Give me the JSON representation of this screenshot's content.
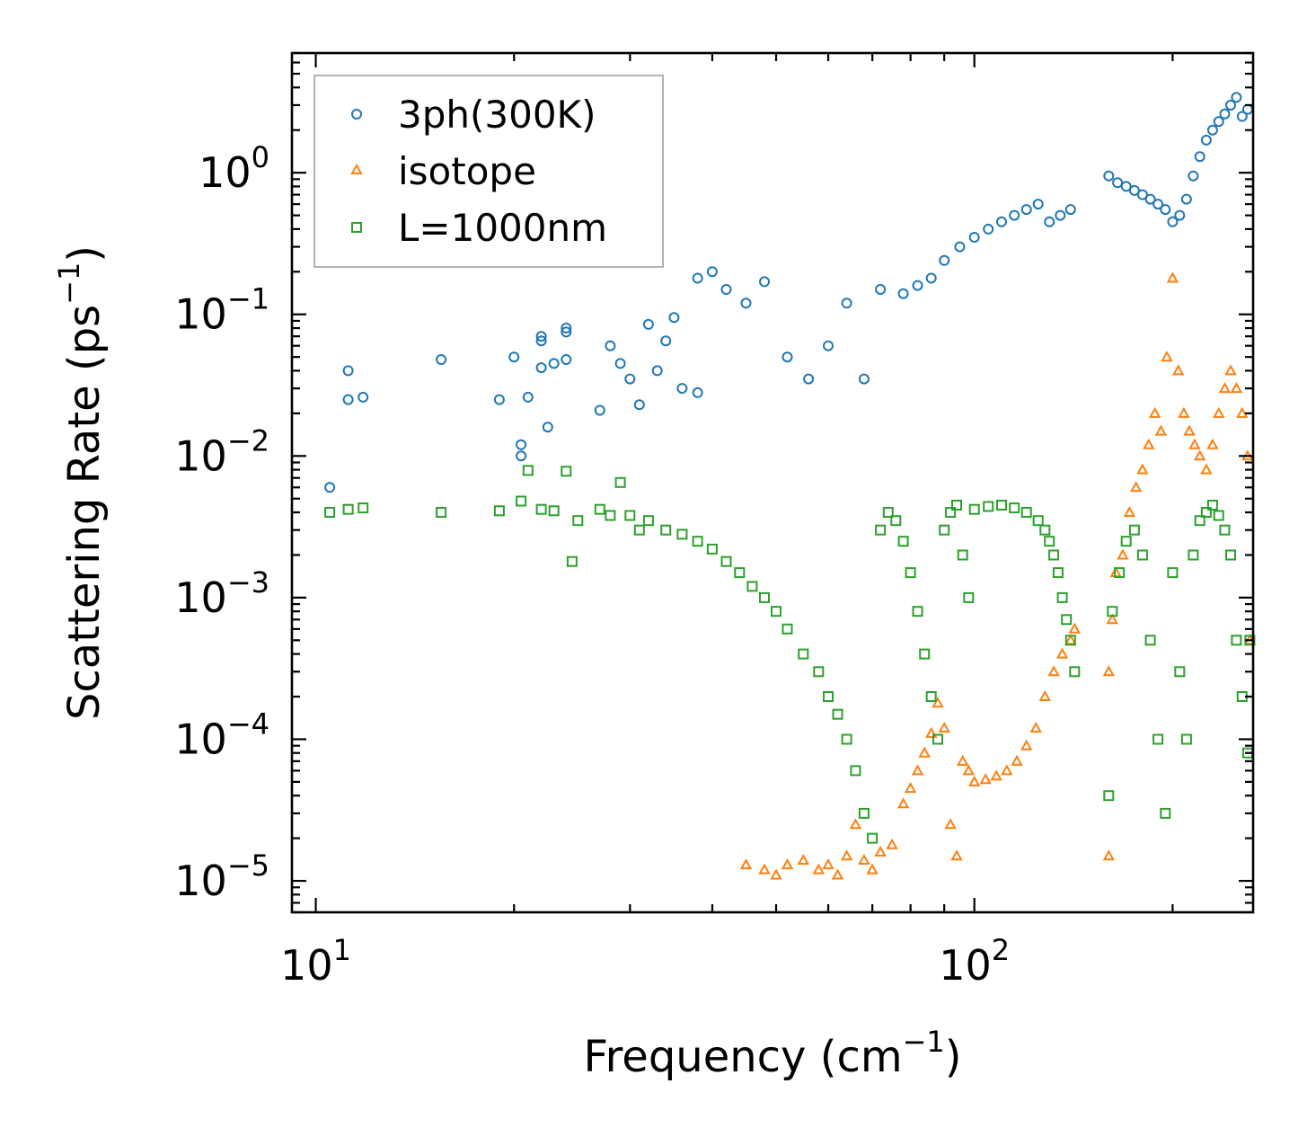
{
  "chart_data": {
    "type": "scatter",
    "title": "",
    "xlabel": "Frequency (cm",
    "xlabel_sup": "−1",
    "xlabel_end": ")",
    "ylabel": "Scattering Rate (ps",
    "ylabel_sup": "−1",
    "ylabel_end": ")",
    "xscale": "log",
    "yscale": "log",
    "xlim": [
      9.2,
      265
    ],
    "ylim": [
      6e-06,
      7.0
    ],
    "grid": false,
    "legend_position": "top-left",
    "x_ticks": [
      {
        "value": 10,
        "base": "10",
        "exp": "1"
      },
      {
        "value": 100,
        "base": "10",
        "exp": "2"
      }
    ],
    "y_ticks": [
      {
        "value": 1,
        "base": "10",
        "exp": "0"
      },
      {
        "value": 0.1,
        "base": "10",
        "exp": "−1"
      },
      {
        "value": 0.01,
        "base": "10",
        "exp": "−2"
      },
      {
        "value": 0.001,
        "base": "10",
        "exp": "−3"
      },
      {
        "value": 0.0001,
        "base": "10",
        "exp": "−4"
      },
      {
        "value": 1e-05,
        "base": "10",
        "exp": "−5"
      }
    ],
    "series": [
      {
        "name": "3ph(300K)",
        "marker": "circle",
        "color": "#1f77b4",
        "points": [
          [
            10.5,
            0.006
          ],
          [
            11.2,
            0.04
          ],
          [
            11.2,
            0.025
          ],
          [
            11.8,
            0.026
          ],
          [
            15.5,
            0.048
          ],
          [
            19,
            0.025
          ],
          [
            20,
            0.05
          ],
          [
            20.5,
            0.012
          ],
          [
            20.5,
            0.01
          ],
          [
            21,
            0.026
          ],
          [
            22,
            0.07
          ],
          [
            22,
            0.065
          ],
          [
            22,
            0.042
          ],
          [
            22.5,
            0.016
          ],
          [
            23,
            0.045
          ],
          [
            24,
            0.08
          ],
          [
            24,
            0.075
          ],
          [
            24,
            0.048
          ],
          [
            27,
            0.021
          ],
          [
            28,
            0.06
          ],
          [
            29,
            0.045
          ],
          [
            30,
            0.035
          ],
          [
            31,
            0.023
          ],
          [
            32,
            0.085
          ],
          [
            33,
            0.04
          ],
          [
            34,
            0.065
          ],
          [
            35,
            0.095
          ],
          [
            36,
            0.03
          ],
          [
            38,
            0.028
          ],
          [
            40,
            0.2
          ],
          [
            42,
            0.15
          ],
          [
            38,
            0.18
          ],
          [
            45,
            0.12
          ],
          [
            48,
            0.17
          ],
          [
            52,
            0.05
          ],
          [
            56,
            0.035
          ],
          [
            60,
            0.06
          ],
          [
            64,
            0.12
          ],
          [
            68,
            0.035
          ],
          [
            72,
            0.15
          ],
          [
            78,
            0.14
          ],
          [
            82,
            0.16
          ],
          [
            86,
            0.18
          ],
          [
            90,
            0.24
          ],
          [
            95,
            0.3
          ],
          [
            100,
            0.35
          ],
          [
            105,
            0.4
          ],
          [
            110,
            0.45
          ],
          [
            115,
            0.5
          ],
          [
            120,
            0.55
          ],
          [
            125,
            0.6
          ],
          [
            130,
            0.45
          ],
          [
            135,
            0.5
          ],
          [
            140,
            0.55
          ],
          [
            160,
            0.95
          ],
          [
            165,
            0.85
          ],
          [
            170,
            0.8
          ],
          [
            175,
            0.75
          ],
          [
            180,
            0.7
          ],
          [
            185,
            0.65
          ],
          [
            190,
            0.6
          ],
          [
            195,
            0.55
          ],
          [
            200,
            0.45
          ],
          [
            205,
            0.5
          ],
          [
            210,
            0.65
          ],
          [
            215,
            0.95
          ],
          [
            220,
            1.3
          ],
          [
            225,
            1.7
          ],
          [
            230,
            2.0
          ],
          [
            235,
            2.3
          ],
          [
            240,
            2.6
          ],
          [
            245,
            3.0
          ],
          [
            250,
            3.4
          ],
          [
            255,
            2.5
          ],
          [
            260,
            2.8
          ]
        ]
      },
      {
        "name": "isotope",
        "marker": "triangle",
        "color": "#ff7f0e",
        "points": [
          [
            45,
            1.3e-05
          ],
          [
            48,
            1.2e-05
          ],
          [
            50,
            1.1e-05
          ],
          [
            52,
            1.3e-05
          ],
          [
            55,
            1.4e-05
          ],
          [
            58,
            1.2e-05
          ],
          [
            60,
            1.3e-05
          ],
          [
            62,
            1.1e-05
          ],
          [
            64,
            1.5e-05
          ],
          [
            66,
            2.5e-05
          ],
          [
            68,
            1.4e-05
          ],
          [
            70,
            1.2e-05
          ],
          [
            72,
            1.6e-05
          ],
          [
            75,
            1.8e-05
          ],
          [
            78,
            3.5e-05
          ],
          [
            80,
            4.5e-05
          ],
          [
            82,
            6e-05
          ],
          [
            84,
            8e-05
          ],
          [
            86,
            0.00011
          ],
          [
            88,
            0.00018
          ],
          [
            90,
            0.00012
          ],
          [
            92,
            2.5e-05
          ],
          [
            94,
            1.5e-05
          ],
          [
            96,
            7e-05
          ],
          [
            98,
            6e-05
          ],
          [
            100,
            5e-05
          ],
          [
            104,
            5.2e-05
          ],
          [
            108,
            5.5e-05
          ],
          [
            112,
            6e-05
          ],
          [
            116,
            7e-05
          ],
          [
            120,
            9e-05
          ],
          [
            124,
            0.00012
          ],
          [
            128,
            0.0002
          ],
          [
            132,
            0.0003
          ],
          [
            136,
            0.0004
          ],
          [
            140,
            0.0005
          ],
          [
            142,
            0.0006
          ],
          [
            160,
            1.5e-05
          ],
          [
            160,
            0.0003
          ],
          [
            162,
            0.0007
          ],
          [
            164,
            0.0015
          ],
          [
            168,
            0.002
          ],
          [
            172,
            0.004
          ],
          [
            176,
            0.006
          ],
          [
            180,
            0.008
          ],
          [
            184,
            0.012
          ],
          [
            188,
            0.02
          ],
          [
            192,
            0.015
          ],
          [
            196,
            0.05
          ],
          [
            200,
            0.18
          ],
          [
            204,
            0.04
          ],
          [
            208,
            0.02
          ],
          [
            212,
            0.015
          ],
          [
            216,
            0.012
          ],
          [
            220,
            0.01
          ],
          [
            225,
            0.008
          ],
          [
            230,
            0.012
          ],
          [
            235,
            0.02
          ],
          [
            240,
            0.03
          ],
          [
            245,
            0.04
          ],
          [
            250,
            0.03
          ],
          [
            255,
            0.02
          ],
          [
            260,
            0.01
          ],
          [
            262,
            0.0005
          ]
        ]
      },
      {
        "name": "L=1000nm",
        "marker": "square",
        "color": "#2ca02c",
        "points": [
          [
            10.5,
            0.004
          ],
          [
            11.2,
            0.0042
          ],
          [
            11.8,
            0.0043
          ],
          [
            15.5,
            0.004
          ],
          [
            19,
            0.0041
          ],
          [
            20.5,
            0.0048
          ],
          [
            21,
            0.0079
          ],
          [
            22,
            0.0042
          ],
          [
            23,
            0.0041
          ],
          [
            24,
            0.0078
          ],
          [
            24.5,
            0.0018
          ],
          [
            25,
            0.0035
          ],
          [
            27,
            0.0042
          ],
          [
            28,
            0.0038
          ],
          [
            29,
            0.0065
          ],
          [
            30,
            0.0038
          ],
          [
            31,
            0.003
          ],
          [
            32,
            0.0035
          ],
          [
            34,
            0.003
          ],
          [
            36,
            0.0028
          ],
          [
            38,
            0.0025
          ],
          [
            40,
            0.0022
          ],
          [
            42,
            0.0018
          ],
          [
            44,
            0.0015
          ],
          [
            46,
            0.0012
          ],
          [
            48,
            0.001
          ],
          [
            50,
            0.0008
          ],
          [
            52,
            0.0006
          ],
          [
            55,
            0.0004
          ],
          [
            58,
            0.0003
          ],
          [
            60,
            0.0002
          ],
          [
            62,
            0.00015
          ],
          [
            64,
            0.0001
          ],
          [
            66,
            6e-05
          ],
          [
            68,
            3e-05
          ],
          [
            70,
            2e-05
          ],
          [
            72,
            0.003
          ],
          [
            74,
            0.004
          ],
          [
            76,
            0.0035
          ],
          [
            78,
            0.0025
          ],
          [
            80,
            0.0015
          ],
          [
            82,
            0.0008
          ],
          [
            84,
            0.0004
          ],
          [
            86,
            0.0002
          ],
          [
            88,
            0.0001
          ],
          [
            90,
            0.003
          ],
          [
            92,
            0.004
          ],
          [
            94,
            0.0045
          ],
          [
            96,
            0.002
          ],
          [
            98,
            0.001
          ],
          [
            100,
            0.0042
          ],
          [
            105,
            0.0044
          ],
          [
            110,
            0.0045
          ],
          [
            115,
            0.0043
          ],
          [
            120,
            0.004
          ],
          [
            125,
            0.0035
          ],
          [
            128,
            0.003
          ],
          [
            130,
            0.0025
          ],
          [
            132,
            0.002
          ],
          [
            134,
            0.0015
          ],
          [
            136,
            0.001
          ],
          [
            138,
            0.0007
          ],
          [
            140,
            0.0005
          ],
          [
            142,
            0.0003
          ],
          [
            160,
            4e-05
          ],
          [
            162,
            0.0008
          ],
          [
            166,
            0.0015
          ],
          [
            170,
            0.0025
          ],
          [
            175,
            0.003
          ],
          [
            180,
            0.002
          ],
          [
            185,
            0.0005
          ],
          [
            190,
            0.0001
          ],
          [
            195,
            3e-05
          ],
          [
            200,
            0.0015
          ],
          [
            205,
            0.0003
          ],
          [
            210,
            0.0001
          ],
          [
            215,
            0.002
          ],
          [
            220,
            0.0035
          ],
          [
            225,
            0.004
          ],
          [
            230,
            0.0045
          ],
          [
            235,
            0.0038
          ],
          [
            240,
            0.003
          ],
          [
            245,
            0.002
          ],
          [
            250,
            0.0005
          ],
          [
            255,
            0.0002
          ],
          [
            260,
            8e-05
          ],
          [
            262,
            0.0005
          ]
        ]
      }
    ]
  }
}
